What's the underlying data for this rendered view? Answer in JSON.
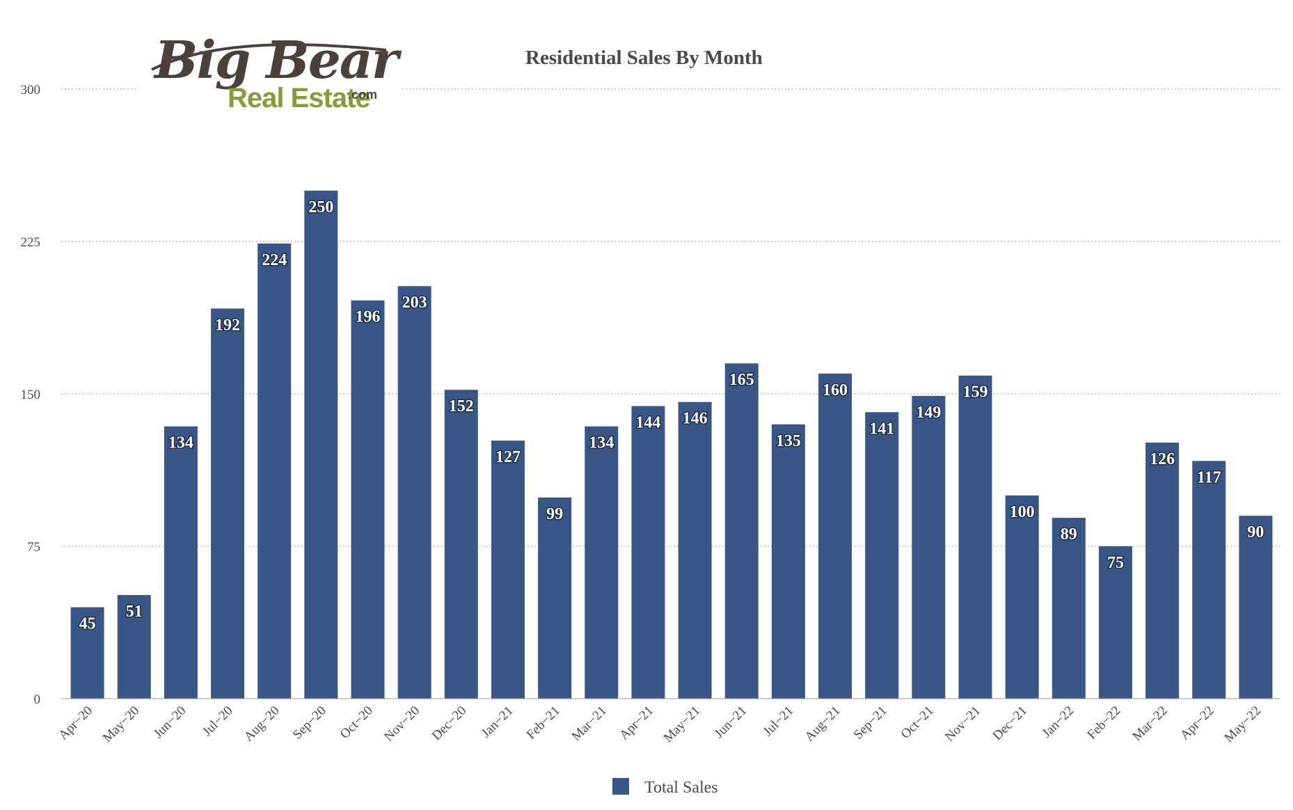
{
  "logo": {
    "line1": "Big Bear",
    "line2": "Real Estate",
    "suffix": ".com"
  },
  "chart_data": {
    "type": "bar",
    "title": "Residential Sales By Month",
    "xlabel": "",
    "ylabel": "",
    "ylim": [
      0,
      300
    ],
    "yticks": [
      0,
      75,
      150,
      225,
      300
    ],
    "grid": true,
    "legend_position": "bottom-center",
    "categories": [
      "Apr−20",
      "May−20",
      "Jun−20",
      "Jul−20",
      "Aug−20",
      "Sep−20",
      "Oct−20",
      "Nov−20",
      "Dec−20",
      "Jan−21",
      "Feb−21",
      "Mar−21",
      "Apr−21",
      "May−21",
      "Jun−21",
      "Jul−21",
      "Aug−21",
      "Sep−21",
      "Oct−21",
      "Nov−21",
      "Dec−21",
      "Jan−22",
      "Feb−22",
      "Mar−22",
      "Apr−22",
      "May−22"
    ],
    "series": [
      {
        "name": "Total Sales",
        "color": "#3a5686",
        "values": [
          45,
          51,
          134,
          192,
          224,
          250,
          196,
          203,
          152,
          127,
          99,
          134,
          144,
          146,
          165,
          135,
          160,
          141,
          149,
          159,
          100,
          89,
          75,
          126,
          117,
          90
        ]
      }
    ]
  }
}
